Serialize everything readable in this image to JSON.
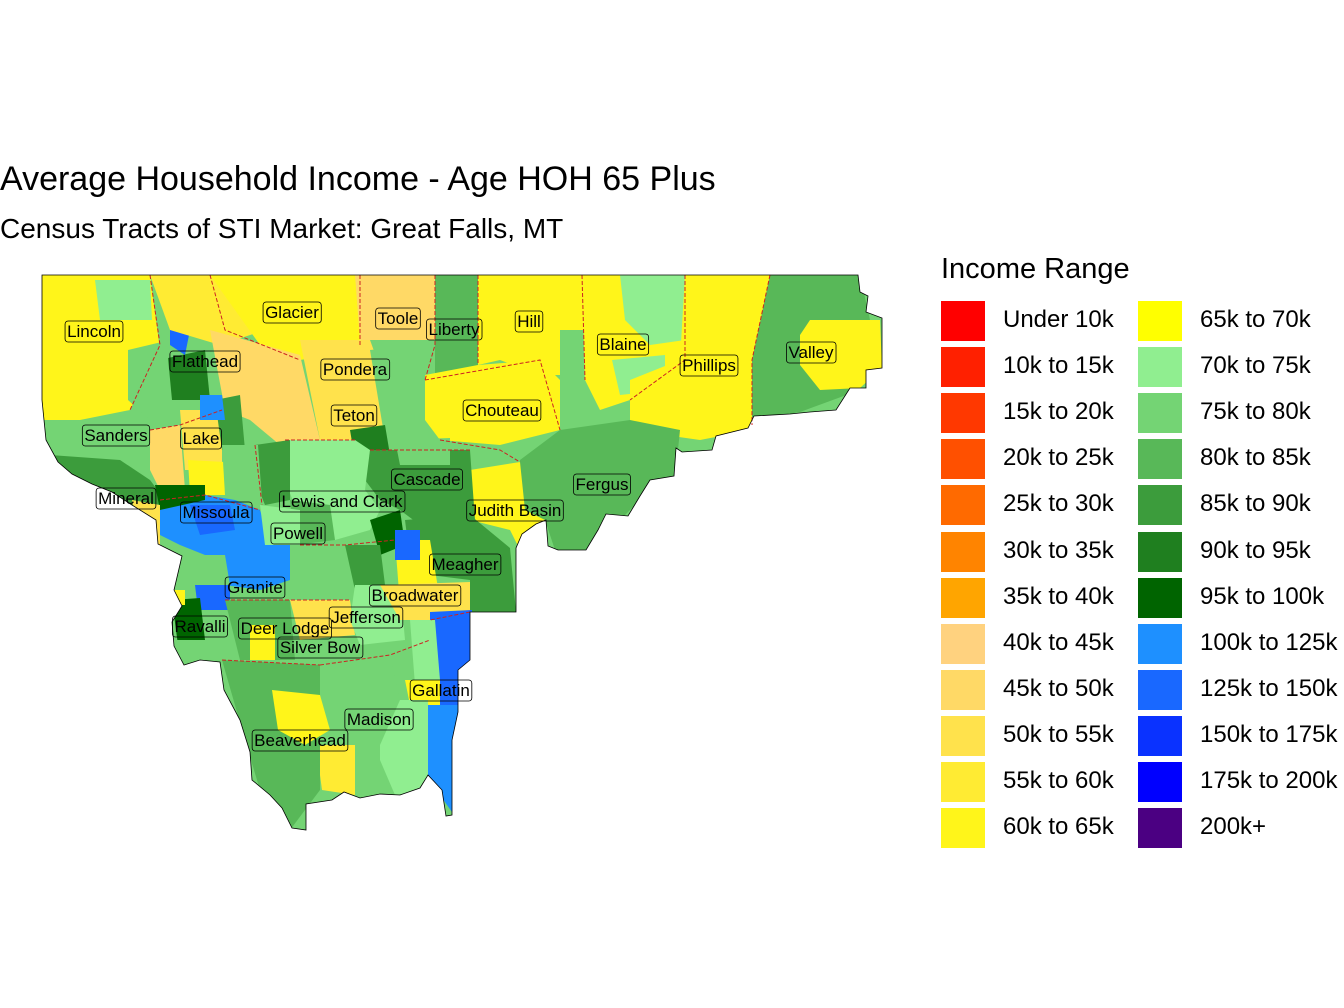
{
  "title": "Average Household Income - Age HOH 65 Plus",
  "subtitle": "Census Tracts of STI Market: Great Falls, MT",
  "legend": {
    "title": "Income Range",
    "items": [
      {
        "label": "Under 10k",
        "color": "#FF0000"
      },
      {
        "label": "10k to 15k",
        "color": "#FF2000"
      },
      {
        "label": "15k to 20k",
        "color": "#FF3800"
      },
      {
        "label": "20k to 25k",
        "color": "#FF5000"
      },
      {
        "label": "25k to 30k",
        "color": "#FF6A00"
      },
      {
        "label": "30k to 35k",
        "color": "#FF8400"
      },
      {
        "label": "35k to 40k",
        "color": "#FFA500"
      },
      {
        "label": "40k to 45k",
        "color": "#FFD27F"
      },
      {
        "label": "45k to 50k",
        "color": "#FFD966"
      },
      {
        "label": "50k to 55k",
        "color": "#FFE24C"
      },
      {
        "label": "55k to 60k",
        "color": "#FFEB33"
      },
      {
        "label": "60k to 65k",
        "color": "#FFF51A"
      },
      {
        "label": "65k to 70k",
        "color": "#FFFF00"
      },
      {
        "label": "70k to 75k",
        "color": "#90EE90"
      },
      {
        "label": "75k to 80k",
        "color": "#74D474"
      },
      {
        "label": "80k to 85k",
        "color": "#58B858"
      },
      {
        "label": "85k to 90k",
        "color": "#3C9C3C"
      },
      {
        "label": "90k to 95k",
        "color": "#1F7F1F"
      },
      {
        "label": "95k to 100k",
        "color": "#006400"
      },
      {
        "label": "100k to 125k",
        "color": "#1E90FF"
      },
      {
        "label": "125k to 150k",
        "color": "#1968FF"
      },
      {
        "label": "150k to 175k",
        "color": "#0A32FF"
      },
      {
        "label": "175k to 200k",
        "color": "#0000FF"
      },
      {
        "label": "200k+",
        "color": "#4B0082"
      }
    ]
  },
  "counties": [
    {
      "name": "Lincoln"
    },
    {
      "name": "Glacier"
    },
    {
      "name": "Toole"
    },
    {
      "name": "Liberty"
    },
    {
      "name": "Hill"
    },
    {
      "name": "Blaine"
    },
    {
      "name": "Phillips"
    },
    {
      "name": "Valley"
    },
    {
      "name": "Flathead"
    },
    {
      "name": "Pondera"
    },
    {
      "name": "Teton"
    },
    {
      "name": "Chouteau"
    },
    {
      "name": "Sanders"
    },
    {
      "name": "Lake"
    },
    {
      "name": "Cascade"
    },
    {
      "name": "Fergus"
    },
    {
      "name": "Mineral"
    },
    {
      "name": "Lewis and Clark"
    },
    {
      "name": "Missoula"
    },
    {
      "name": "Judith Basin"
    },
    {
      "name": "Powell"
    },
    {
      "name": "Meagher"
    },
    {
      "name": "Granite"
    },
    {
      "name": "Broadwater"
    },
    {
      "name": "Jefferson"
    },
    {
      "name": "Ravalli"
    },
    {
      "name": "Deer Lodge"
    },
    {
      "name": "Silver Bow"
    },
    {
      "name": "Gallatin"
    },
    {
      "name": "Madison"
    },
    {
      "name": "Beaverhead"
    }
  ]
}
